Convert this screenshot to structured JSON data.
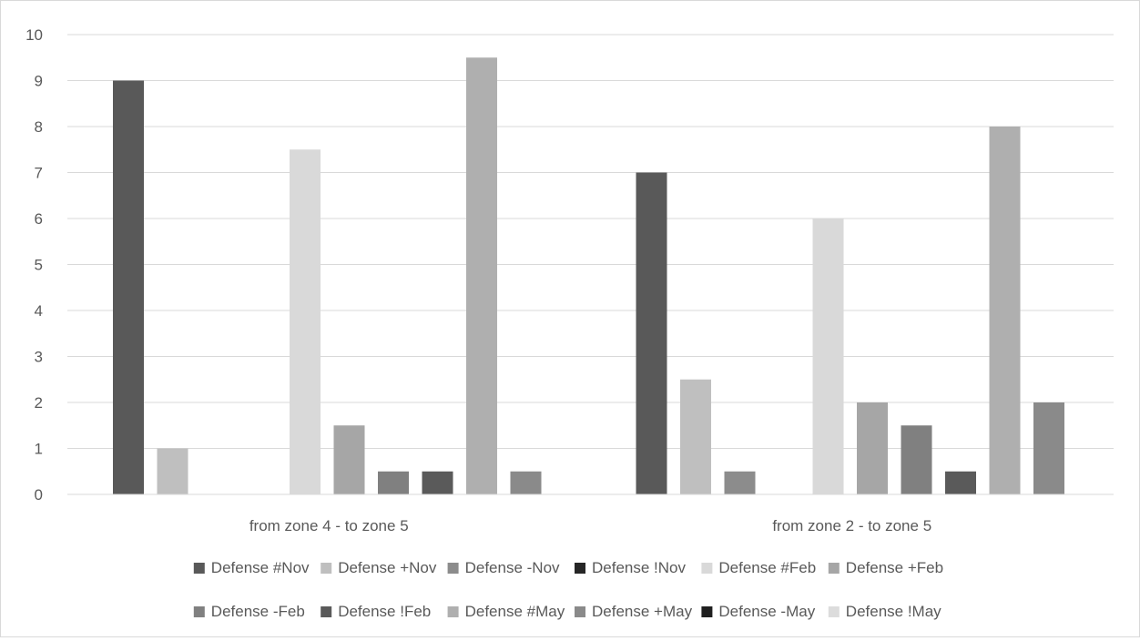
{
  "chart_data": {
    "type": "bar",
    "categories": [
      "from zone 4 - to zone 5",
      "from zone 2 - to zone 5"
    ],
    "ylim": [
      0,
      10
    ],
    "yticks": [
      0,
      1,
      2,
      3,
      4,
      5,
      6,
      7,
      8,
      9,
      10
    ],
    "grid": true,
    "legend_position": "bottom",
    "series": [
      {
        "name": "Defense #Nov",
        "color": "#595959",
        "values": [
          9,
          7
        ]
      },
      {
        "name": "Defense +Nov",
        "color": "#bfbfbf",
        "values": [
          1,
          2.5
        ]
      },
      {
        "name": "Defense -Nov",
        "color": "#8c8c8c",
        "values": [
          0,
          0.5
        ]
      },
      {
        "name": "Defense !Nov",
        "color": "#262626",
        "values": [
          0,
          0
        ]
      },
      {
        "name": "Defense #Feb",
        "color": "#d9d9d9",
        "values": [
          7.5,
          6
        ]
      },
      {
        "name": "Defense +Feb",
        "color": "#a6a6a6",
        "values": [
          1.5,
          2
        ]
      },
      {
        "name": "Defense -Feb",
        "color": "#808080",
        "values": [
          0.5,
          1.5
        ]
      },
      {
        "name": "Defense !Feb",
        "color": "#5a5a5a",
        "values": [
          0.5,
          0.5
        ]
      },
      {
        "name": "Defense #May",
        "color": "#afafaf",
        "values": [
          9.5,
          8
        ]
      },
      {
        "name": "Defense +May",
        "color": "#8a8a8a",
        "values": [
          0.5,
          2
        ]
      },
      {
        "name": "Defense -May",
        "color": "#1f1f1f",
        "values": [
          0,
          0
        ]
      },
      {
        "name": "Defense !May",
        "color": "#dcdcdc",
        "values": [
          0,
          0
        ]
      }
    ]
  }
}
